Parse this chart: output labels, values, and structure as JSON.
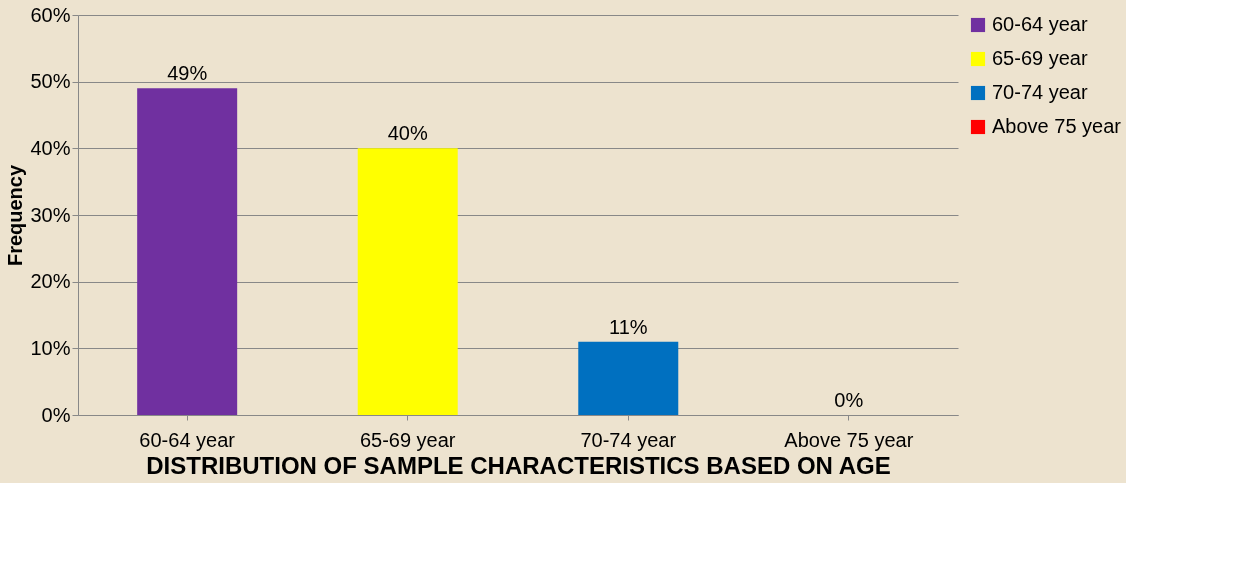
{
  "chart_data": {
    "type": "bar",
    "xlabel": "DISTRIBUTION OF SAMPLE CHARACTERISTICS BASED ON AGE",
    "ylabel": "Frequency",
    "categories": [
      "60-64 year",
      "65-69 year",
      "70-74 year",
      "Above 75 year"
    ],
    "series": [
      {
        "name": "60-64 year",
        "color": "#7030a0",
        "values": [
          49,
          null,
          null,
          null
        ],
        "value_labels": [
          "49%",
          null,
          null,
          null
        ]
      },
      {
        "name": "65-69 year",
        "color": "#ffff00",
        "values": [
          null,
          40,
          null,
          null
        ],
        "value_labels": [
          null,
          "40%",
          null,
          null
        ]
      },
      {
        "name": "70-74 year",
        "color": "#0070c0",
        "values": [
          null,
          null,
          11,
          null
        ],
        "value_labels": [
          null,
          null,
          "11%",
          null
        ]
      },
      {
        "name": "Above 75 year",
        "color": "#ff0000",
        "values": [
          null,
          null,
          null,
          0
        ],
        "value_labels": [
          null,
          null,
          null,
          "0%"
        ]
      }
    ],
    "ylim": [
      0,
      60
    ],
    "yticks": [
      {
        "value": 0,
        "label": "0%"
      },
      {
        "value": 10,
        "label": "10%"
      },
      {
        "value": 20,
        "label": "20%"
      },
      {
        "value": 30,
        "label": "30%"
      },
      {
        "value": 40,
        "label": "40%"
      },
      {
        "value": 50,
        "label": "50%"
      },
      {
        "value": 60,
        "label": "60%"
      }
    ],
    "grid": "y",
    "legend": "right"
  }
}
